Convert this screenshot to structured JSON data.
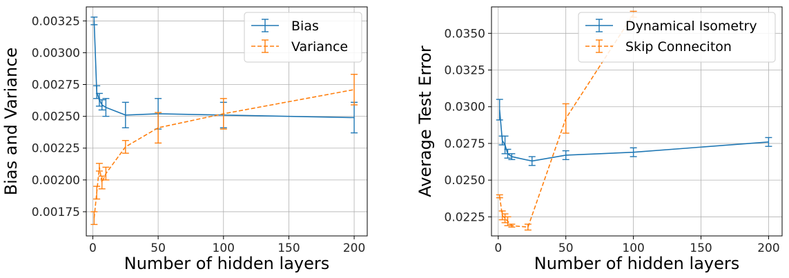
{
  "chart_data": [
    {
      "type": "line",
      "xlabel": "Number of hidden layers",
      "ylabel": "Bias and Variance",
      "xlim": [
        -5,
        210
      ],
      "ylim": [
        0.00156,
        0.00336
      ],
      "xticks": [
        0,
        50,
        100,
        150,
        200
      ],
      "xtick_labels": [
        "0",
        "50",
        "100",
        "150",
        "200"
      ],
      "yticks": [
        0.00175,
        0.002,
        0.00225,
        0.0025,
        0.00275,
        0.003,
        0.00325
      ],
      "ytick_labels": [
        "0.00175",
        "0.00200",
        "0.00225",
        "0.00250",
        "0.00275",
        "0.00300",
        "0.00325"
      ],
      "grid": true,
      "legend_position": "top-right",
      "series": [
        {
          "name": "Bias",
          "color": "#1f77b4",
          "linestyle": "solid",
          "x": [
            1,
            3,
            5,
            7,
            10,
            25,
            50,
            100,
            200
          ],
          "y": [
            0.00325,
            0.00269,
            0.00263,
            0.00259,
            0.00257,
            0.00251,
            0.00252,
            0.00251,
            0.00249
          ],
          "err": [
            3e-05,
            5e-05,
            5e-05,
            4e-05,
            7e-05,
            0.0001,
            0.00012,
            0.0001,
            0.00012
          ]
        },
        {
          "name": "Variance",
          "color": "#ff7f0e",
          "linestyle": "dashed",
          "x": [
            1,
            3,
            5,
            7,
            10,
            25,
            50,
            100,
            200
          ],
          "y": [
            0.0017,
            0.0019,
            0.0021,
            0.00198,
            0.00205,
            0.00226,
            0.00241,
            0.00252,
            0.00271
          ],
          "err": [
            5e-05,
            5e-05,
            3e-05,
            5e-05,
            5e-05,
            5e-05,
            0.00012,
            0.00012,
            0.00012
          ]
        }
      ]
    },
    {
      "type": "line",
      "xlabel": "Number of hidden layers",
      "ylabel": "Average Test Error",
      "xlim": [
        -5,
        210
      ],
      "ylim": [
        0.0212,
        0.0368
      ],
      "xticks": [
        0,
        50,
        100,
        150,
        200
      ],
      "xtick_labels": [
        "0",
        "50",
        "100",
        "150",
        "200"
      ],
      "yticks": [
        0.0225,
        0.025,
        0.0275,
        0.03,
        0.0325,
        0.035
      ],
      "ytick_labels": [
        "0.0225",
        "0.0250",
        "0.0275",
        "0.0300",
        "0.0325",
        "0.0350"
      ],
      "grid": true,
      "legend_position": "top-right",
      "series": [
        {
          "name": "Dynamical Isometry",
          "color": "#1f77b4",
          "linestyle": "solid",
          "x": [
            1,
            3,
            5,
            7,
            10,
            25,
            50,
            100,
            200
          ],
          "y": [
            0.0298,
            0.0277,
            0.0274,
            0.0268,
            0.0266,
            0.0263,
            0.0267,
            0.0269,
            0.0276
          ],
          "err": [
            0.0007,
            0.0003,
            0.0006,
            0.0003,
            0.0002,
            0.0003,
            0.0003,
            0.0003,
            0.0003
          ]
        },
        {
          "name": "Skip Conneciton",
          "color": "#ff7f0e",
          "linestyle": "dashed",
          "x": [
            1,
            3,
            5,
            7,
            10,
            22,
            50,
            100
          ],
          "y": [
            0.0239,
            0.0226,
            0.0224,
            0.0222,
            0.0219,
            0.0218,
            0.0292,
            0.0363
          ],
          "err": [
            0.0001,
            0.0003,
            0.0003,
            0.0003,
            0.0001,
            0.0002,
            0.001,
            0.0002
          ]
        }
      ]
    }
  ]
}
